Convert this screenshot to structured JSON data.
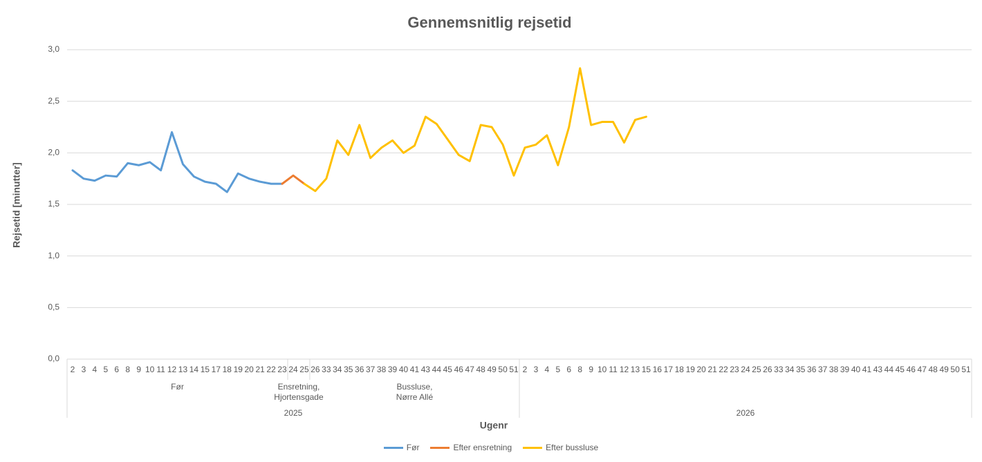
{
  "chart_data": {
    "type": "line",
    "title": "Gennemsnitlig rejsetid",
    "y_axis_label": "Rejsetid [minutter]",
    "x_axis_label": "Ugenr",
    "years": [
      {
        "name": "2025",
        "periods": [
          {
            "name": "Før",
            "weeks": [
              "2",
              "3",
              "4",
              "5",
              "6",
              "8",
              "9",
              "10",
              "11",
              "12",
              "13",
              "14",
              "15",
              "17",
              "18",
              "19",
              "20",
              "21",
              "22",
              "23"
            ]
          },
          {
            "name": "Ensretning,\nHjortensgade",
            "weeks": [
              "24",
              "25"
            ]
          },
          {
            "name": "Bussluse,\nNørre Allé",
            "weeks": [
              "26",
              "33",
              "34",
              "35",
              "36",
              "37",
              "38",
              "39",
              "40",
              "41",
              "43",
              "44",
              "45",
              "46",
              "47",
              "48",
              "49",
              "50",
              "51"
            ]
          }
        ]
      },
      {
        "name": "2026",
        "periods": [
          {
            "name": null,
            "weeks": [
              "2",
              "3",
              "4",
              "5",
              "6",
              "8",
              "9",
              "10",
              "11",
              "12",
              "13",
              "15",
              "16",
              "17",
              "18",
              "19",
              "20",
              "21",
              "22",
              "23",
              "24",
              "25",
              "26",
              "33",
              "34",
              "35",
              "36",
              "37",
              "38",
              "39",
              "40",
              "41",
              "43",
              "44",
              "45",
              "46",
              "47",
              "48",
              "49",
              "50",
              "51"
            ]
          }
        ]
      }
    ],
    "series": [
      {
        "name": "Før",
        "color": "#5b9bd5",
        "values": [
          1.83,
          1.75,
          1.73,
          1.78,
          1.77,
          1.9,
          1.88,
          1.91,
          1.83,
          2.2,
          1.89,
          1.77,
          1.72,
          1.7,
          1.62,
          1.8,
          1.75,
          1.72,
          1.7,
          1.7,
          null,
          null,
          null,
          null,
          null,
          null,
          null,
          null,
          null,
          null,
          null,
          null,
          null,
          null,
          null,
          null,
          null,
          null,
          null,
          null,
          null,
          null,
          null,
          null,
          null,
          null,
          null,
          null,
          null,
          null,
          null,
          null,
          null,
          null,
          null,
          null,
          null,
          null,
          null,
          null,
          null,
          null,
          null,
          null,
          null,
          null,
          null,
          null,
          null,
          null,
          null,
          null,
          null,
          null,
          null,
          null,
          null,
          null,
          null,
          null,
          null,
          null
        ]
      },
      {
        "name": "Efter ensretning",
        "color": "#ed7d31",
        "values": [
          null,
          null,
          null,
          null,
          null,
          null,
          null,
          null,
          null,
          null,
          null,
          null,
          null,
          null,
          null,
          null,
          null,
          null,
          null,
          1.7,
          1.78,
          1.7,
          null,
          null,
          null,
          null,
          null,
          null,
          null,
          null,
          null,
          null,
          null,
          null,
          null,
          null,
          null,
          null,
          null,
          null,
          null,
          null,
          null,
          null,
          null,
          null,
          null,
          null,
          null,
          null,
          null,
          null,
          null,
          null,
          null,
          null,
          null,
          null,
          null,
          null,
          null,
          null,
          null,
          null,
          null,
          null,
          null,
          null,
          null,
          null,
          null,
          null,
          null,
          null,
          null,
          null,
          null,
          null,
          null,
          null,
          null,
          null
        ]
      },
      {
        "name": "Efter bussluse",
        "color": "#ffc000",
        "values": [
          null,
          null,
          null,
          null,
          null,
          null,
          null,
          null,
          null,
          null,
          null,
          null,
          null,
          null,
          null,
          null,
          null,
          null,
          null,
          null,
          null,
          1.7,
          1.63,
          1.75,
          2.12,
          1.98,
          2.27,
          1.95,
          2.05,
          2.12,
          2.0,
          2.07,
          2.35,
          2.28,
          2.13,
          1.98,
          1.92,
          2.27,
          2.25,
          2.08,
          1.78,
          2.05,
          2.08,
          2.17,
          1.88,
          2.25,
          2.82,
          2.27,
          2.3,
          2.3,
          2.1,
          2.32,
          2.35,
          null,
          null,
          null,
          null,
          null,
          null,
          null,
          null,
          null,
          null,
          null,
          null,
          null,
          null,
          null,
          null,
          null,
          null,
          null,
          null,
          null,
          null,
          null,
          null,
          null,
          null,
          null,
          null,
          null
        ]
      }
    ],
    "ylim": [
      0,
      3
    ],
    "yticks": [
      {
        "value": 0,
        "label": "0,0"
      },
      {
        "value": 0.5,
        "label": "0,5"
      },
      {
        "value": 1,
        "label": "1,0"
      },
      {
        "value": 1.5,
        "label": "1,5"
      },
      {
        "value": 2,
        "label": "2,0"
      },
      {
        "value": 2.5,
        "label": "2,5"
      },
      {
        "value": 3,
        "label": "3,0"
      }
    ],
    "grid": true,
    "legend": "bottom"
  }
}
